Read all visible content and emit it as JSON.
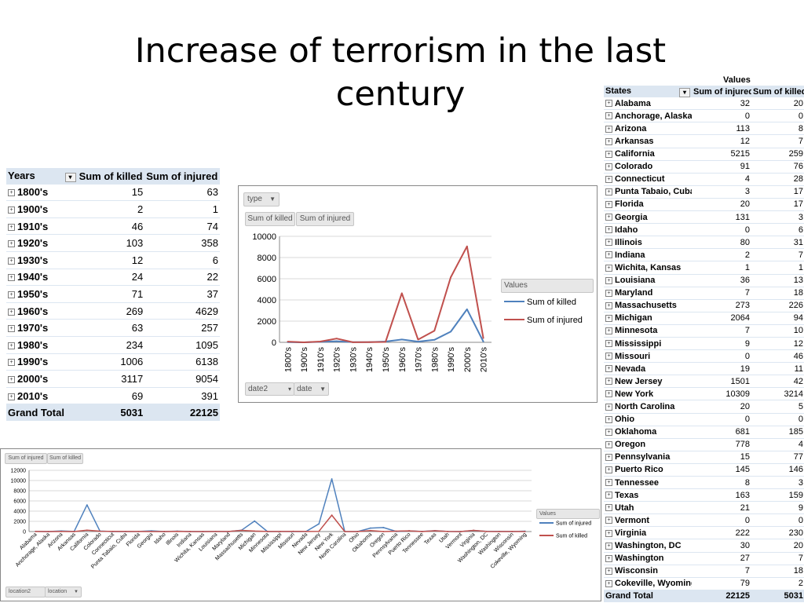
{
  "slide": {
    "title_line1": "Increase of terrorism in the last",
    "title_line2": "century"
  },
  "years_table": {
    "col_years": "Years",
    "col_killed": "Sum of killed",
    "col_injured": "Sum of injured",
    "rows": [
      {
        "label": "1800's",
        "killed": "15",
        "injured": "63"
      },
      {
        "label": "1900's",
        "killed": "2",
        "injured": "1"
      },
      {
        "label": "1910's",
        "killed": "46",
        "injured": "74"
      },
      {
        "label": "1920's",
        "killed": "103",
        "injured": "358"
      },
      {
        "label": "1930's",
        "killed": "12",
        "injured": "6"
      },
      {
        "label": "1940's",
        "killed": "24",
        "injured": "22"
      },
      {
        "label": "1950's",
        "killed": "71",
        "injured": "37"
      },
      {
        "label": "1960's",
        "killed": "269",
        "injured": "4629"
      },
      {
        "label": "1970's",
        "killed": "63",
        "injured": "257"
      },
      {
        "label": "1980's",
        "killed": "234",
        "injured": "1095"
      },
      {
        "label": "1990's",
        "killed": "1006",
        "injured": "6138"
      },
      {
        "label": "2000's",
        "killed": "3117",
        "injured": "9054"
      },
      {
        "label": "2010's",
        "killed": "69",
        "injured": "391"
      }
    ],
    "total": {
      "label": "Grand Total",
      "killed": "5031",
      "injured": "22125"
    }
  },
  "states_table": {
    "values_header": "Values",
    "col_states": "States",
    "col_injured": "Sum of injured",
    "col_killed": "Sum of killed",
    "rows": [
      {
        "label": "Alabama",
        "injured": "32",
        "killed": "20"
      },
      {
        "label": "Anchorage, Alaska",
        "injured": "0",
        "killed": "0"
      },
      {
        "label": "Arizona",
        "injured": "113",
        "killed": "8"
      },
      {
        "label": "Arkansas",
        "injured": "12",
        "killed": "7"
      },
      {
        "label": "California",
        "injured": "5215",
        "killed": "259"
      },
      {
        "label": "Colorado",
        "injured": "91",
        "killed": "76"
      },
      {
        "label": "Connecticut",
        "injured": "4",
        "killed": "28"
      },
      {
        "label": "Punta Tabaio, Cuba",
        "injured": "3",
        "killed": "17"
      },
      {
        "label": "Florida",
        "injured": "20",
        "killed": "17"
      },
      {
        "label": "Georgia",
        "injured": "131",
        "killed": "3"
      },
      {
        "label": "Idaho",
        "injured": "0",
        "killed": "6"
      },
      {
        "label": "Illinois",
        "injured": "80",
        "killed": "31"
      },
      {
        "label": "Indiana",
        "injured": "2",
        "killed": "7"
      },
      {
        "label": "Wichita, Kansas",
        "injured": "1",
        "killed": "1"
      },
      {
        "label": "Louisiana",
        "injured": "36",
        "killed": "13"
      },
      {
        "label": "Maryland",
        "injured": "7",
        "killed": "18"
      },
      {
        "label": "Massachusetts",
        "injured": "273",
        "killed": "226"
      },
      {
        "label": "Michigan",
        "injured": "2064",
        "killed": "94"
      },
      {
        "label": "Minnesota",
        "injured": "7",
        "killed": "10"
      },
      {
        "label": "Mississippi",
        "injured": "9",
        "killed": "12"
      },
      {
        "label": "Missouri",
        "injured": "0",
        "killed": "46"
      },
      {
        "label": "Nevada",
        "injured": "19",
        "killed": "11"
      },
      {
        "label": "New Jersey",
        "injured": "1501",
        "killed": "42"
      },
      {
        "label": "New York",
        "injured": "10309",
        "killed": "3214"
      },
      {
        "label": "North Carolina",
        "injured": "20",
        "killed": "5"
      },
      {
        "label": "Ohio",
        "injured": "0",
        "killed": "0"
      },
      {
        "label": "Oklahoma",
        "injured": "681",
        "killed": "185"
      },
      {
        "label": "Oregon",
        "injured": "778",
        "killed": "4"
      },
      {
        "label": "Pennsylvania",
        "injured": "15",
        "killed": "77"
      },
      {
        "label": "Puerto Rico",
        "injured": "145",
        "killed": "146"
      },
      {
        "label": "Tennessee",
        "injured": "8",
        "killed": "3"
      },
      {
        "label": "Texas",
        "injured": "163",
        "killed": "159"
      },
      {
        "label": "Utah",
        "injured": "21",
        "killed": "9"
      },
      {
        "label": "Vermont",
        "injured": "0",
        "killed": "0"
      },
      {
        "label": "Virginia",
        "injured": "222",
        "killed": "230"
      },
      {
        "label": "Washington, DC",
        "injured": "30",
        "killed": "20"
      },
      {
        "label": "Washington",
        "injured": "27",
        "killed": "7"
      },
      {
        "label": "Wisconsin",
        "injured": "7",
        "killed": "18"
      },
      {
        "label": "Cokeville, Wyoming",
        "injured": "79",
        "killed": "2"
      }
    ],
    "total": {
      "label": "Grand Total",
      "injured": "22125",
      "killed": "5031"
    }
  },
  "decade_chart_ui": {
    "filter_type": "type",
    "field_killed": "Sum of killed",
    "field_injured": "Sum of injured",
    "filter_date2": "date2",
    "filter_date": "date",
    "legend_title": "Values"
  },
  "state_chart_ui": {
    "field_injured": "Sum of injured",
    "field_killed": "Sum of killed",
    "filter_location2": "location2",
    "filter_location": "location",
    "legend_title": "Values"
  },
  "colors": {
    "blue": "#4f81bd",
    "red": "#c0504d",
    "header_bg": "#dce6f1"
  },
  "chart_data": [
    {
      "type": "line",
      "categories": [
        "1800's",
        "1900's",
        "1910's",
        "1920's",
        "1930's",
        "1940's",
        "1950's",
        "1960's",
        "1970's",
        "1980's",
        "1990's",
        "2000's",
        "2010's"
      ],
      "series": [
        {
          "name": "Sum of killed",
          "color": "#4f81bd",
          "values": [
            15,
            2,
            46,
            103,
            12,
            24,
            71,
            269,
            63,
            234,
            1006,
            3117,
            69
          ]
        },
        {
          "name": "Sum of injured",
          "color": "#c0504d",
          "values": [
            63,
            1,
            74,
            358,
            6,
            22,
            37,
            4629,
            257,
            1095,
            6138,
            9054,
            391
          ]
        }
      ],
      "yticks": [
        "0",
        "2000",
        "4000",
        "6000",
        "8000",
        "10000"
      ],
      "ylim": [
        0,
        10000
      ],
      "grid": true,
      "legend": "right"
    },
    {
      "type": "line",
      "categories": [
        "Alabama",
        "Anchorage, Alaska",
        "Arizona",
        "Arkansas",
        "California",
        "Colorado",
        "Connecticut",
        "Punta Tabaio, Cuba",
        "Florida",
        "Georgia",
        "Idaho",
        "Illinois",
        "Indiana",
        "Wichita, Kansas",
        "Louisiana",
        "Maryland",
        "Massachusetts",
        "Michigan",
        "Minnesota",
        "Mississippi",
        "Missouri",
        "Nevada",
        "New Jersey",
        "New York",
        "North Carolina",
        "Ohio",
        "Oklahoma",
        "Oregon",
        "Pennsylvania",
        "Puerto Rico",
        "Tennessee",
        "Texas",
        "Utah",
        "Vermont",
        "Virginia",
        "Washington, DC",
        "Washington",
        "Wisconsin",
        "Cokeville, Wyoming"
      ],
      "series": [
        {
          "name": "Sum of injured",
          "color": "#4f81bd",
          "values": [
            32,
            0,
            113,
            12,
            5215,
            91,
            4,
            3,
            20,
            131,
            0,
            80,
            2,
            1,
            36,
            7,
            273,
            2064,
            7,
            9,
            0,
            19,
            1501,
            10309,
            20,
            0,
            681,
            778,
            15,
            145,
            8,
            163,
            21,
            0,
            222,
            30,
            27,
            7,
            79
          ]
        },
        {
          "name": "Sum of killed",
          "color": "#c0504d",
          "values": [
            20,
            0,
            8,
            7,
            259,
            76,
            28,
            17,
            17,
            3,
            6,
            31,
            7,
            1,
            13,
            18,
            226,
            94,
            10,
            12,
            46,
            11,
            42,
            3214,
            5,
            0,
            185,
            4,
            77,
            146,
            3,
            159,
            9,
            0,
            230,
            20,
            7,
            18,
            2
          ]
        }
      ],
      "yticks": [
        "0",
        "2000",
        "4000",
        "6000",
        "8000",
        "10000",
        "12000"
      ],
      "ylim": [
        0,
        12000
      ],
      "grid": true,
      "legend": "right"
    }
  ]
}
